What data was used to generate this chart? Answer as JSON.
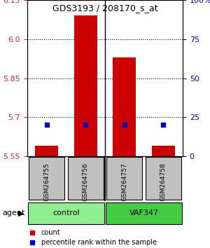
{
  "title": "GDS3193 / 208170_s_at",
  "samples": [
    "GSM264755",
    "GSM264756",
    "GSM264757",
    "GSM264758"
  ],
  "groups": [
    "control",
    "control",
    "VAF347",
    "VAF347"
  ],
  "group_labels": [
    "control",
    "VAF347"
  ],
  "group_colors": [
    "#90EE90",
    "#00CC00"
  ],
  "ylim_left": [
    5.55,
    6.15
  ],
  "yticks_left": [
    5.55,
    5.7,
    5.85,
    6.0,
    6.15
  ],
  "ylim_right": [
    0,
    100
  ],
  "yticks_right": [
    0,
    25,
    50,
    75,
    100
  ],
  "ytick_labels_right": [
    "0",
    "25",
    "50",
    "75",
    "100%"
  ],
  "bar_base": 5.55,
  "count_values": [
    5.59,
    6.09,
    5.93,
    5.59
  ],
  "percentile_values": [
    20,
    20,
    20,
    20
  ],
  "count_color": "#CC0000",
  "percentile_color": "#0000CC",
  "bar_width": 0.6,
  "agent_label": "agent",
  "legend_count": "count",
  "legend_percentile": "percentile rank within the sample",
  "left_tick_color": "#CC3333",
  "right_tick_color": "#0000CC",
  "grid_color": "#000000",
  "sample_box_color": "#C0C0C0"
}
